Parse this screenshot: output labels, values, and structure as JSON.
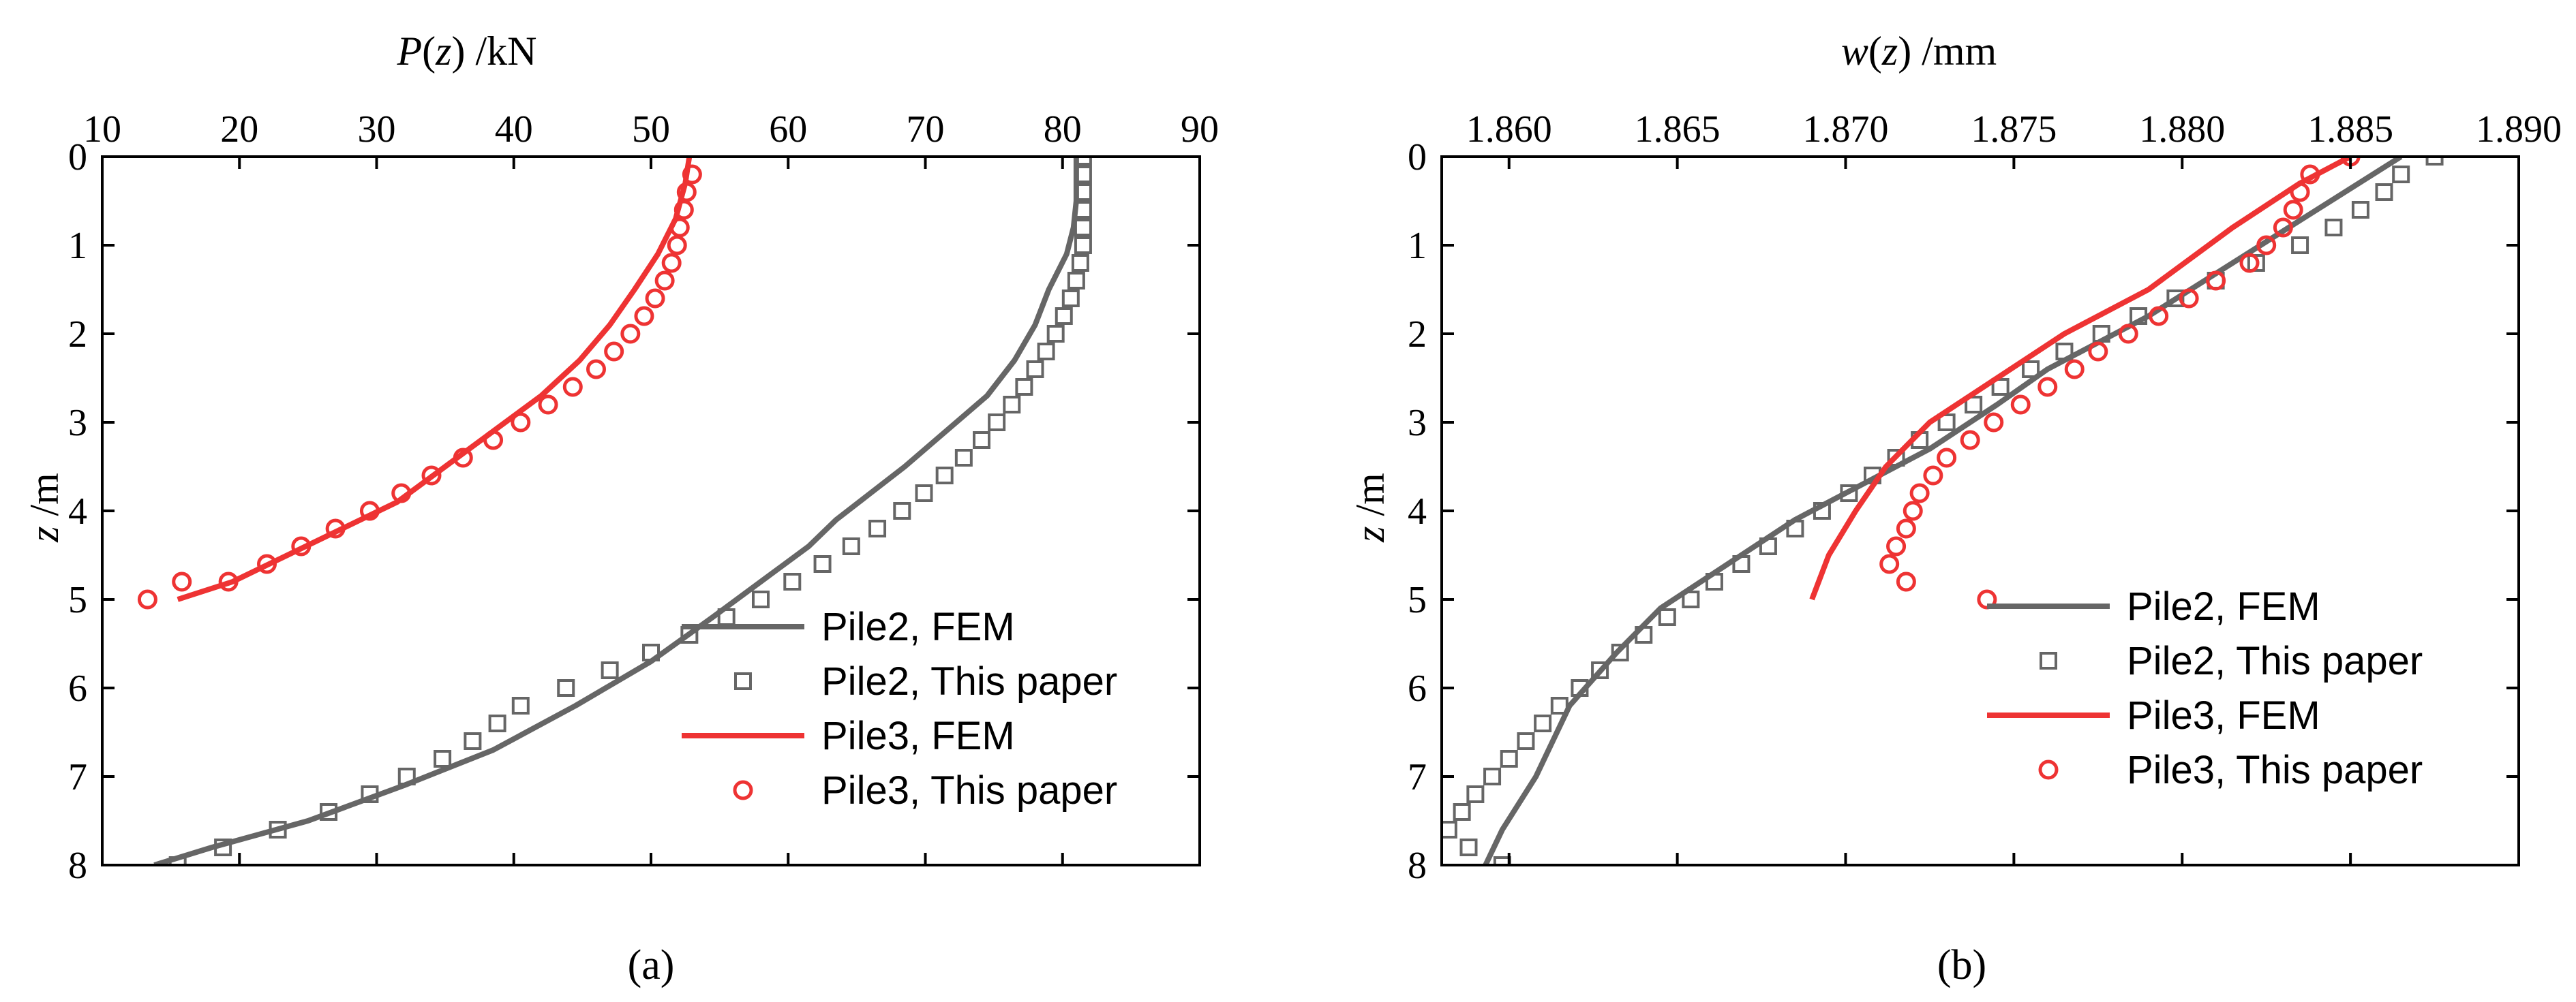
{
  "colors": {
    "pile2": "#666666",
    "pile3": "#ee3333",
    "axis": "#000000"
  },
  "chart_data": [
    {
      "type": "line",
      "panel_label": "(a)",
      "xlabel": "P(z) /kN",
      "ylabel": "z /m",
      "xlim": [
        10,
        90
      ],
      "ylim": [
        0,
        8
      ],
      "x_ticks": [
        10,
        20,
        30,
        40,
        50,
        60,
        70,
        80,
        90
      ],
      "y_ticks": [
        0,
        1,
        2,
        3,
        4,
        5,
        6,
        7,
        8
      ],
      "x_axis_position": "top",
      "y_inverted": true,
      "grid": false,
      "legend_position": "bottom-right",
      "series": [
        {
          "name": "Pile2, FEM",
          "style": "line",
          "color_key": "pile2",
          "points": [
            [
              81.0,
              0.0
            ],
            [
              81.0,
              0.5
            ],
            [
              80.8,
              0.8
            ],
            [
              80.3,
              1.1
            ],
            [
              79.0,
              1.5
            ],
            [
              78.0,
              1.9
            ],
            [
              76.5,
              2.3
            ],
            [
              74.5,
              2.7
            ],
            [
              71.5,
              3.1
            ],
            [
              68.5,
              3.5
            ],
            [
              66.0,
              3.8
            ],
            [
              63.5,
              4.1
            ],
            [
              61.5,
              4.4
            ],
            [
              58.0,
              4.8
            ],
            [
              54.5,
              5.2
            ],
            [
              50.0,
              5.7
            ],
            [
              44.5,
              6.2
            ],
            [
              38.5,
              6.7
            ],
            [
              32.0,
              7.1
            ],
            [
              25.0,
              7.5
            ],
            [
              18.0,
              7.8
            ],
            [
              13.8,
              8.0
            ]
          ]
        },
        {
          "name": "Pile2, This paper",
          "style": "square",
          "color_key": "pile2",
          "points": [
            [
              81.5,
              0.0
            ],
            [
              81.5,
              0.2
            ],
            [
              81.5,
              0.4
            ],
            [
              81.5,
              0.6
            ],
            [
              81.5,
              0.8
            ],
            [
              81.5,
              1.0
            ],
            [
              81.3,
              1.2
            ],
            [
              81.0,
              1.4
            ],
            [
              80.6,
              1.6
            ],
            [
              80.1,
              1.8
            ],
            [
              79.5,
              2.0
            ],
            [
              78.8,
              2.2
            ],
            [
              78.0,
              2.4
            ],
            [
              77.2,
              2.6
            ],
            [
              76.3,
              2.8
            ],
            [
              75.2,
              3.0
            ],
            [
              74.1,
              3.2
            ],
            [
              72.8,
              3.4
            ],
            [
              71.4,
              3.6
            ],
            [
              69.9,
              3.8
            ],
            [
              68.3,
              4.0
            ],
            [
              66.5,
              4.2
            ],
            [
              64.6,
              4.4
            ],
            [
              62.5,
              4.6
            ],
            [
              60.3,
              4.8
            ],
            [
              58.0,
              5.0
            ],
            [
              55.5,
              5.2
            ],
            [
              52.8,
              5.4
            ],
            [
              50.0,
              5.6
            ],
            [
              47.0,
              5.8
            ],
            [
              43.8,
              6.0
            ],
            [
              40.5,
              6.2
            ],
            [
              38.8,
              6.4
            ],
            [
              37.0,
              6.6
            ],
            [
              34.8,
              6.8
            ],
            [
              32.2,
              7.0
            ],
            [
              29.5,
              7.2
            ],
            [
              26.5,
              7.4
            ],
            [
              22.8,
              7.6
            ],
            [
              18.8,
              7.8
            ],
            [
              15.5,
              8.0
            ]
          ]
        },
        {
          "name": "Pile3, FEM",
          "style": "line",
          "color_key": "pile3",
          "points": [
            [
              52.8,
              0.0
            ],
            [
              52.5,
              0.3
            ],
            [
              51.8,
              0.7
            ],
            [
              50.5,
              1.1
            ],
            [
              48.8,
              1.5
            ],
            [
              47.0,
              1.9
            ],
            [
              44.8,
              2.3
            ],
            [
              42.0,
              2.7
            ],
            [
              38.5,
              3.1
            ],
            [
              35.0,
              3.5
            ],
            [
              31.5,
              3.9
            ],
            [
              27.5,
              4.2
            ],
            [
              23.5,
              4.5
            ],
            [
              19.5,
              4.8
            ],
            [
              15.5,
              5.0
            ]
          ]
        },
        {
          "name": "Pile3, This paper",
          "style": "circle",
          "color_key": "pile3",
          "points": [
            [
              53.0,
              0.2
            ],
            [
              52.6,
              0.4
            ],
            [
              52.4,
              0.6
            ],
            [
              52.1,
              0.8
            ],
            [
              51.9,
              1.0
            ],
            [
              51.5,
              1.2
            ],
            [
              51.0,
              1.4
            ],
            [
              50.3,
              1.6
            ],
            [
              49.5,
              1.8
            ],
            [
              48.5,
              2.0
            ],
            [
              47.3,
              2.2
            ],
            [
              46.0,
              2.4
            ],
            [
              44.3,
              2.6
            ],
            [
              42.5,
              2.8
            ],
            [
              40.5,
              3.0
            ],
            [
              38.5,
              3.2
            ],
            [
              36.3,
              3.4
            ],
            [
              34.0,
              3.6
            ],
            [
              31.8,
              3.8
            ],
            [
              29.5,
              4.0
            ],
            [
              27.0,
              4.2
            ],
            [
              24.5,
              4.4
            ],
            [
              22.0,
              4.6
            ],
            [
              19.2,
              4.8
            ],
            [
              15.8,
              4.8
            ],
            [
              13.3,
              5.0
            ]
          ]
        }
      ]
    },
    {
      "type": "line",
      "panel_label": "(b)",
      "xlabel": "w(z) /mm",
      "ylabel": "z /m",
      "xlim": [
        1.858,
        1.89
      ],
      "ylim": [
        0,
        8
      ],
      "x_ticks": [
        1.86,
        1.865,
        1.87,
        1.875,
        1.88,
        1.885,
        1.89
      ],
      "x_tick_labels": [
        "1.860",
        "1.865",
        "1.870",
        "1.875",
        "1.880",
        "1.885",
        "1.890"
      ],
      "y_ticks": [
        0,
        1,
        2,
        3,
        4,
        5,
        6,
        7,
        8
      ],
      "x_axis_position": "top",
      "y_inverted": true,
      "grid": false,
      "legend_position": "bottom-right",
      "series": [
        {
          "name": "Pile2, FEM",
          "style": "line",
          "color_key": "pile2",
          "points": [
            [
              1.8865,
              0.0
            ],
            [
              1.884,
              0.6
            ],
            [
              1.8815,
              1.2
            ],
            [
              1.879,
              1.8
            ],
            [
              1.876,
              2.4
            ],
            [
              1.8745,
              2.8
            ],
            [
              1.8725,
              3.3
            ],
            [
              1.8705,
              3.7
            ],
            [
              1.8685,
              4.1
            ],
            [
              1.8665,
              4.6
            ],
            [
              1.8645,
              5.1
            ],
            [
              1.8632,
              5.6
            ],
            [
              1.8618,
              6.2
            ],
            [
              1.8608,
              7.0
            ],
            [
              1.8598,
              7.6
            ],
            [
              1.8593,
              8.0
            ]
          ]
        },
        {
          "name": "Pile2, This paper",
          "style": "square",
          "color_key": "pile2",
          "points": [
            [
              1.8875,
              0.0
            ],
            [
              1.8865,
              0.2
            ],
            [
              1.886,
              0.4
            ],
            [
              1.8853,
              0.6
            ],
            [
              1.8845,
              0.8
            ],
            [
              1.8835,
              1.0
            ],
            [
              1.8822,
              1.2
            ],
            [
              1.881,
              1.4
            ],
            [
              1.8798,
              1.6
            ],
            [
              1.8787,
              1.8
            ],
            [
              1.8776,
              2.0
            ],
            [
              1.8765,
              2.2
            ],
            [
              1.8755,
              2.4
            ],
            [
              1.8746,
              2.6
            ],
            [
              1.8738,
              2.8
            ],
            [
              1.873,
              3.0
            ],
            [
              1.8722,
              3.2
            ],
            [
              1.8715,
              3.4
            ],
            [
              1.8708,
              3.6
            ],
            [
              1.8701,
              3.8
            ],
            [
              1.8693,
              4.0
            ],
            [
              1.8685,
              4.2
            ],
            [
              1.8677,
              4.4
            ],
            [
              1.8669,
              4.6
            ],
            [
              1.8661,
              4.8
            ],
            [
              1.8654,
              5.0
            ],
            [
              1.8647,
              5.2
            ],
            [
              1.864,
              5.4
            ],
            [
              1.8633,
              5.6
            ],
            [
              1.8627,
              5.8
            ],
            [
              1.8621,
              6.0
            ],
            [
              1.8615,
              6.2
            ],
            [
              1.861,
              6.4
            ],
            [
              1.8605,
              6.6
            ],
            [
              1.86,
              6.8
            ],
            [
              1.8595,
              7.0
            ],
            [
              1.859,
              7.2
            ],
            [
              1.8586,
              7.4
            ],
            [
              1.8582,
              7.6
            ],
            [
              1.8588,
              7.8
            ],
            [
              1.8598,
              8.0
            ]
          ]
        },
        {
          "name": "Pile3, FEM",
          "style": "line",
          "color_key": "pile3",
          "points": [
            [
              1.885,
              0.0
            ],
            [
              1.8835,
              0.3
            ],
            [
              1.8815,
              0.8
            ],
            [
              1.879,
              1.5
            ],
            [
              1.8765,
              2.0
            ],
            [
              1.8745,
              2.5
            ],
            [
              1.8725,
              3.0
            ],
            [
              1.8712,
              3.5
            ],
            [
              1.8703,
              4.0
            ],
            [
              1.8695,
              4.5
            ],
            [
              1.869,
              5.0
            ]
          ]
        },
        {
          "name": "Pile3, This paper",
          "style": "circle",
          "color_key": "pile3",
          "points": [
            [
              1.885,
              0.0
            ],
            [
              1.8838,
              0.2
            ],
            [
              1.8835,
              0.4
            ],
            [
              1.8833,
              0.6
            ],
            [
              1.883,
              0.8
            ],
            [
              1.8825,
              1.0
            ],
            [
              1.882,
              1.2
            ],
            [
              1.881,
              1.4
            ],
            [
              1.8802,
              1.6
            ],
            [
              1.8793,
              1.8
            ],
            [
              1.8784,
              2.0
            ],
            [
              1.8775,
              2.2
            ],
            [
              1.8768,
              2.4
            ],
            [
              1.876,
              2.6
            ],
            [
              1.8752,
              2.8
            ],
            [
              1.8744,
              3.0
            ],
            [
              1.8737,
              3.2
            ],
            [
              1.873,
              3.4
            ],
            [
              1.8726,
              3.6
            ],
            [
              1.8722,
              3.8
            ],
            [
              1.872,
              4.0
            ],
            [
              1.8718,
              4.2
            ],
            [
              1.8715,
              4.4
            ],
            [
              1.8713,
              4.6
            ],
            [
              1.8718,
              4.8
            ],
            [
              1.8742,
              5.0
            ]
          ]
        }
      ]
    }
  ]
}
